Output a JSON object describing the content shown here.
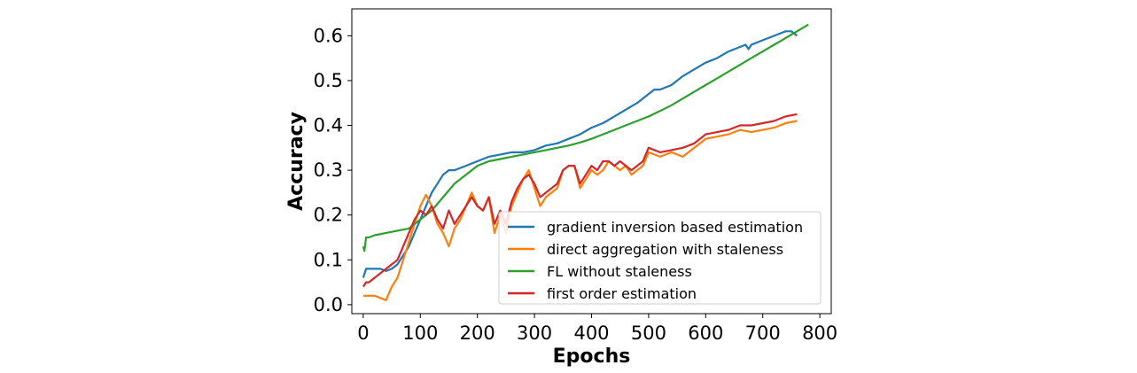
{
  "chart_data": {
    "type": "line",
    "title": "",
    "xlabel": "Epochs",
    "ylabel": "Accuracy",
    "xlim": [
      -20,
      820
    ],
    "ylim": [
      -0.02,
      0.66
    ],
    "xticks": [
      0,
      100,
      200,
      300,
      400,
      500,
      600,
      700,
      800
    ],
    "xtick_labels": [
      "0",
      "100",
      "200",
      "300",
      "400",
      "500",
      "600",
      "700",
      "800"
    ],
    "yticks": [
      0.0,
      0.1,
      0.2,
      0.3,
      0.4,
      0.5,
      0.6
    ],
    "ytick_labels": [
      "0.0",
      "0.1",
      "0.2",
      "0.3",
      "0.4",
      "0.5",
      "0.6"
    ],
    "grid": false,
    "legend": "lower-right",
    "series": [
      {
        "name": "gradient inversion based estimation",
        "color": "#1f77b4",
        "x": [
          0,
          5,
          10,
          20,
          30,
          40,
          50,
          60,
          70,
          80,
          90,
          100,
          110,
          120,
          130,
          140,
          150,
          160,
          180,
          200,
          220,
          240,
          260,
          280,
          300,
          320,
          340,
          360,
          380,
          400,
          420,
          440,
          460,
          480,
          500,
          510,
          520,
          540,
          560,
          580,
          600,
          620,
          640,
          660,
          670,
          675,
          680,
          700,
          720,
          740,
          750,
          760
        ],
        "y": [
          0.06,
          0.08,
          0.08,
          0.08,
          0.08,
          0.075,
          0.08,
          0.09,
          0.11,
          0.13,
          0.16,
          0.19,
          0.22,
          0.25,
          0.27,
          0.29,
          0.3,
          0.3,
          0.31,
          0.32,
          0.33,
          0.335,
          0.34,
          0.34,
          0.345,
          0.355,
          0.36,
          0.37,
          0.38,
          0.395,
          0.405,
          0.42,
          0.435,
          0.45,
          0.47,
          0.48,
          0.48,
          0.49,
          0.51,
          0.525,
          0.54,
          0.55,
          0.565,
          0.575,
          0.58,
          0.57,
          0.58,
          0.59,
          0.6,
          0.61,
          0.61,
          0.6
        ]
      },
      {
        "name": "direct aggregation with staleness",
        "color": "#ff7f0e",
        "x": [
          0,
          10,
          20,
          30,
          40,
          50,
          60,
          70,
          80,
          90,
          100,
          110,
          120,
          130,
          140,
          150,
          160,
          170,
          180,
          190,
          200,
          210,
          220,
          230,
          240,
          250,
          260,
          270,
          280,
          290,
          300,
          310,
          320,
          330,
          340,
          350,
          360,
          370,
          380,
          390,
          400,
          410,
          420,
          430,
          440,
          450,
          460,
          470,
          480,
          490,
          500,
          520,
          540,
          560,
          580,
          600,
          620,
          640,
          660,
          680,
          700,
          720,
          740,
          760
        ],
        "y": [
          0.02,
          0.02,
          0.02,
          0.015,
          0.01,
          0.04,
          0.06,
          0.1,
          0.14,
          0.18,
          0.22,
          0.245,
          0.22,
          0.18,
          0.16,
          0.13,
          0.17,
          0.19,
          0.22,
          0.25,
          0.22,
          0.21,
          0.24,
          0.16,
          0.2,
          0.16,
          0.22,
          0.25,
          0.28,
          0.3,
          0.26,
          0.22,
          0.24,
          0.25,
          0.26,
          0.3,
          0.31,
          0.31,
          0.26,
          0.28,
          0.3,
          0.29,
          0.3,
          0.32,
          0.31,
          0.3,
          0.31,
          0.29,
          0.3,
          0.31,
          0.34,
          0.33,
          0.34,
          0.33,
          0.35,
          0.37,
          0.375,
          0.38,
          0.39,
          0.385,
          0.39,
          0.395,
          0.405,
          0.41
        ]
      },
      {
        "name": "FL without staleness",
        "color": "#2ca02c",
        "x": [
          0,
          2,
          5,
          10,
          20,
          40,
          60,
          80,
          90,
          100,
          110,
          120,
          130,
          140,
          150,
          160,
          180,
          200,
          220,
          240,
          260,
          280,
          300,
          320,
          340,
          360,
          380,
          400,
          420,
          440,
          460,
          480,
          500,
          520,
          540,
          560,
          580,
          600,
          620,
          640,
          660,
          680,
          700,
          720,
          740,
          760,
          780
        ],
        "y": [
          0.13,
          0.12,
          0.15,
          0.15,
          0.155,
          0.16,
          0.165,
          0.17,
          0.18,
          0.19,
          0.2,
          0.21,
          0.225,
          0.24,
          0.255,
          0.27,
          0.29,
          0.31,
          0.32,
          0.325,
          0.33,
          0.335,
          0.34,
          0.345,
          0.35,
          0.355,
          0.362,
          0.37,
          0.38,
          0.39,
          0.4,
          0.41,
          0.42,
          0.432,
          0.445,
          0.46,
          0.475,
          0.49,
          0.505,
          0.52,
          0.535,
          0.55,
          0.565,
          0.58,
          0.595,
          0.61,
          0.625
        ]
      },
      {
        "name": "first order estimation",
        "color": "#d62728",
        "x": [
          0,
          5,
          10,
          20,
          30,
          40,
          50,
          60,
          70,
          80,
          90,
          100,
          110,
          120,
          130,
          140,
          150,
          160,
          170,
          180,
          190,
          200,
          210,
          220,
          230,
          240,
          250,
          260,
          270,
          280,
          290,
          300,
          310,
          320,
          330,
          340,
          350,
          360,
          370,
          380,
          390,
          400,
          410,
          420,
          430,
          440,
          450,
          460,
          470,
          480,
          490,
          500,
          520,
          540,
          560,
          580,
          600,
          620,
          640,
          660,
          680,
          700,
          720,
          740,
          760
        ],
        "y": [
          0.04,
          0.05,
          0.05,
          0.06,
          0.07,
          0.08,
          0.09,
          0.1,
          0.13,
          0.16,
          0.19,
          0.21,
          0.2,
          0.22,
          0.19,
          0.17,
          0.21,
          0.18,
          0.2,
          0.22,
          0.24,
          0.22,
          0.21,
          0.24,
          0.18,
          0.21,
          0.18,
          0.23,
          0.26,
          0.28,
          0.29,
          0.27,
          0.24,
          0.25,
          0.26,
          0.27,
          0.3,
          0.31,
          0.31,
          0.27,
          0.29,
          0.31,
          0.3,
          0.32,
          0.32,
          0.31,
          0.32,
          0.31,
          0.3,
          0.31,
          0.32,
          0.35,
          0.34,
          0.345,
          0.35,
          0.36,
          0.38,
          0.385,
          0.39,
          0.4,
          0.4,
          0.405,
          0.41,
          0.42,
          0.425
        ]
      }
    ]
  }
}
